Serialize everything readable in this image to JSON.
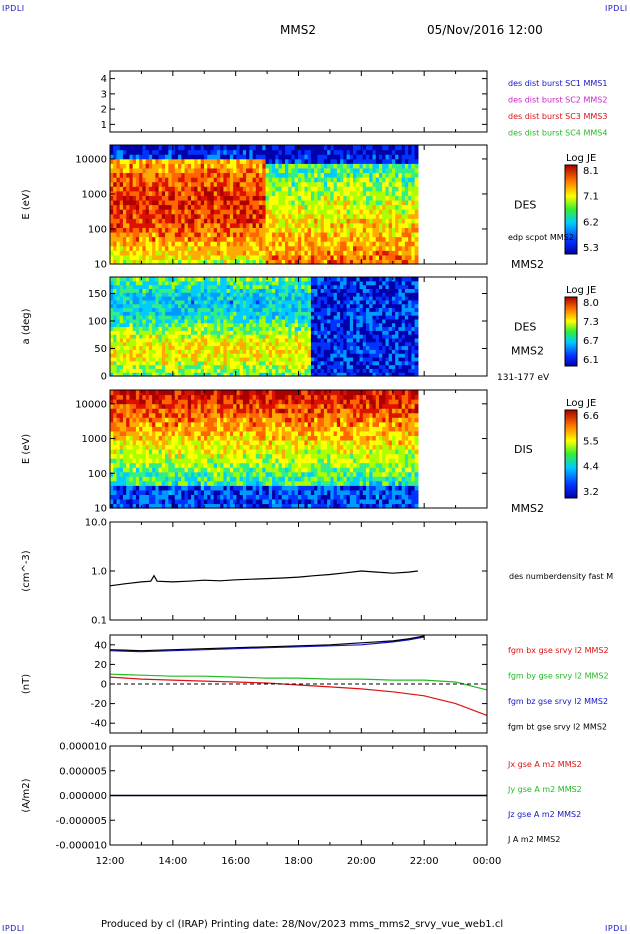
{
  "corners": {
    "tl": "IPDLI",
    "tr": "IPDLI",
    "bl": "IPDLI",
    "br": "IPDLI"
  },
  "header": {
    "spacecraft": "MMS2",
    "datetime": "05/Nov/2016 12:00"
  },
  "footer": {
    "text": "Produced by cl (IRAP)   Printing date: 28/Nov/2023   mms_mms2_srvy_vue_web1.cl"
  },
  "colors": {
    "blue": "#1515c8",
    "magenta": "#cc22cc",
    "red": "#dd1111",
    "green": "#22bb22",
    "navy": "#101070",
    "black": "#000000"
  },
  "chart_data": [
    {
      "type": "line",
      "id": "burst",
      "ylim": [
        0.5,
        4.5
      ],
      "yticks": [
        "1",
        "2",
        "3",
        "4"
      ],
      "legend": [
        {
          "text": "des dist burst SC1 MMS1",
          "color": "#1515c8"
        },
        {
          "text": "des dist burst SC2 MMS2",
          "color": "#cc22cc"
        },
        {
          "text": "des dist burst SC3 MMS3",
          "color": "#dd1111"
        },
        {
          "text": "des dist burst SC4 MMS4",
          "color": "#22bb22"
        }
      ]
    },
    {
      "type": "heatmap",
      "id": "des_energy",
      "ylabel": "E (eV)",
      "log": true,
      "ylim": [
        10,
        25000
      ],
      "yticks": [
        "10",
        "100",
        "1000",
        "10000"
      ],
      "data_end_hour": 21.8,
      "label": "DES",
      "colorbar_title": "Log JE",
      "colorbar_ticks": [
        "8.1",
        "7.1",
        "6.2",
        "5.3"
      ],
      "overlay_label": "edp scpot MMS2",
      "sc_label": "MMS2"
    },
    {
      "type": "heatmap",
      "id": "des_pitch",
      "ylabel": "a (deg)",
      "ylim": [
        0,
        180
      ],
      "yticks": [
        "0",
        "50",
        "100",
        "150"
      ],
      "data_end_hour": 21.8,
      "label": "DES",
      "colorbar_title": "Log JE",
      "colorbar_ticks": [
        "8.0",
        "7.3",
        "6.7",
        "6.1"
      ],
      "sc_label": "MMS2",
      "energy_range": "131-177 eV"
    },
    {
      "type": "heatmap",
      "id": "dis_energy",
      "ylabel": "E (eV)",
      "log": true,
      "ylim": [
        10,
        25000
      ],
      "yticks": [
        "10",
        "100",
        "1000",
        "10000"
      ],
      "data_end_hour": 21.8,
      "label": "DIS",
      "colorbar_title": "Log JE",
      "colorbar_ticks": [
        "6.6",
        "5.5",
        "4.4",
        "3.2"
      ],
      "sc_label": "MMS2"
    },
    {
      "type": "line",
      "id": "density",
      "ylabel": "(cm^-3)",
      "log": true,
      "ylim": [
        0.1,
        10
      ],
      "yticks": [
        "0.1",
        "1.0",
        "10.0"
      ],
      "series": [
        {
          "name": "des numberdensity fast M",
          "color": "#000000",
          "x": [
            12.0,
            12.5,
            13.0,
            13.3,
            13.4,
            13.5,
            14.0,
            14.5,
            15.0,
            15.5,
            16.0,
            16.5,
            17.0,
            17.5,
            18.0,
            18.5,
            19.0,
            19.5,
            20.0,
            20.5,
            21.0,
            21.5,
            21.8
          ],
          "y": [
            0.5,
            0.55,
            0.6,
            0.62,
            0.8,
            0.62,
            0.6,
            0.62,
            0.65,
            0.63,
            0.66,
            0.68,
            0.7,
            0.72,
            0.75,
            0.8,
            0.85,
            0.92,
            1.0,
            0.95,
            0.9,
            0.95,
            1.0
          ]
        }
      ]
    },
    {
      "type": "line",
      "id": "bfield",
      "ylabel": "(nT)",
      "ylim": [
        -50,
        50
      ],
      "yticks": [
        "-40",
        "-20",
        "0",
        "20",
        "40"
      ],
      "series": [
        {
          "name": "fgm bx gse srvy l2 MMS2",
          "color": "#dd1111",
          "x": [
            12,
            13,
            14,
            15,
            16,
            17,
            18,
            19,
            20,
            21,
            22,
            23,
            24
          ],
          "y": [
            7,
            5,
            4,
            3,
            2,
            1,
            -1,
            -3,
            -5,
            -8,
            -12,
            -20,
            -32
          ]
        },
        {
          "name": "fgm by gse srvy l2 MMS2",
          "color": "#22bb22",
          "x": [
            12,
            13,
            14,
            15,
            16,
            17,
            18,
            19,
            20,
            21,
            22,
            23,
            24
          ],
          "y": [
            10,
            9,
            8,
            8,
            7,
            6,
            6,
            5,
            5,
            4,
            4,
            2,
            -6
          ]
        },
        {
          "name": "fgm bz gse srvy l2 MMS2",
          "color": "#1515c8",
          "x": [
            12,
            13,
            14,
            15,
            16,
            17,
            18,
            19,
            20,
            21,
            21.5,
            22
          ],
          "y": [
            34,
            33,
            34,
            35,
            36,
            37,
            38,
            39,
            40,
            43,
            45,
            48
          ]
        },
        {
          "name": "fgm bt gse srvy l2 MMS2",
          "color": "#000000",
          "x": [
            12,
            13,
            14,
            15,
            16,
            17,
            18,
            19,
            20,
            21,
            21.5,
            22
          ],
          "y": [
            35,
            34,
            35,
            36,
            37,
            38,
            39,
            40,
            42,
            44,
            46,
            49
          ]
        }
      ]
    },
    {
      "type": "line",
      "id": "current",
      "ylabel": "(A/m2)",
      "ylim": [
        -1e-05,
        1e-05
      ],
      "yticks": [
        "-0.000010",
        "-0.000005",
        "0.000000",
        "0.000005",
        "0.000010"
      ],
      "xticks": [
        "12:00",
        "14:00",
        "16:00",
        "18:00",
        "20:00",
        "22:00",
        "00:00"
      ],
      "series": [
        {
          "name": "Jx gse A m2 MMS2",
          "color": "#dd1111",
          "x": [
            12,
            24
          ],
          "y": [
            0,
            0
          ]
        },
        {
          "name": "Jy gse A m2 MMS2",
          "color": "#22bb22",
          "x": [
            12,
            24
          ],
          "y": [
            0,
            0
          ]
        },
        {
          "name": "Jz gse A m2 MMS2",
          "color": "#1515c8",
          "x": [
            12,
            24
          ],
          "y": [
            0,
            0
          ]
        },
        {
          "name": "J A m2 MMS2",
          "color": "#000000",
          "x": [
            12,
            24
          ],
          "y": [
            0,
            0
          ]
        }
      ]
    }
  ]
}
